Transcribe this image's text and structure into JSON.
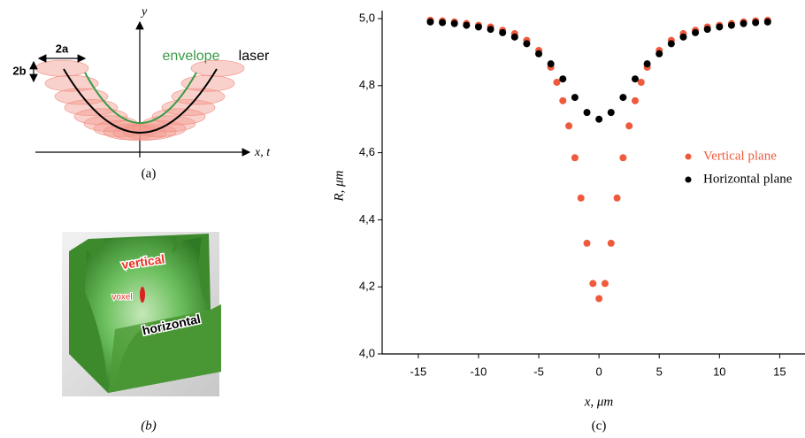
{
  "panel_a": {
    "y_axis": "y",
    "x_axis": "x, t",
    "width": "2a",
    "height": "2b",
    "envelope": "envelope",
    "laser": "laser",
    "caption": "(a)"
  },
  "panel_b": {
    "vertical": "vertical",
    "voxel": "voxel",
    "horizontal": "horizontal",
    "caption": "(b)"
  },
  "chart_data": {
    "type": "scatter",
    "caption": "(c)",
    "x_label": "x, μm",
    "y_label": "R, μm",
    "xlim": [
      -18,
      17.1
    ],
    "ylim": [
      4.0,
      5.0
    ],
    "xticks": [
      -15,
      -10,
      -5,
      0,
      5,
      10,
      15
    ],
    "yticks": [
      {
        "value": 4.0,
        "label": "4,0"
      },
      {
        "value": 4.2,
        "label": "4,2"
      },
      {
        "value": 4.4,
        "label": "4,4"
      },
      {
        "value": 4.6,
        "label": "4,6"
      },
      {
        "value": 4.8,
        "label": "4,8"
      },
      {
        "value": 5.0,
        "label": "5,0"
      }
    ],
    "legend": "right",
    "series": [
      {
        "name": "Vertical plane",
        "color": "#ef5a3c",
        "x": [
          -14,
          -13,
          -12,
          -11,
          -10,
          -9,
          -8,
          -7,
          -6,
          -5,
          -4,
          -3.5,
          -3,
          -2.5,
          -2,
          -1.5,
          -1,
          -0.5,
          0,
          0.5,
          1,
          1.5,
          2,
          2.5,
          3,
          3.5,
          4,
          5,
          6,
          7,
          8,
          9,
          10,
          11,
          12,
          13,
          14
        ],
        "values": [
          4.995,
          4.993,
          4.99,
          4.985,
          4.98,
          4.975,
          4.965,
          4.955,
          4.935,
          4.905,
          4.855,
          4.81,
          4.755,
          4.68,
          4.585,
          4.465,
          4.33,
          4.21,
          4.165,
          4.21,
          4.33,
          4.465,
          4.585,
          4.68,
          4.755,
          4.81,
          4.855,
          4.905,
          4.935,
          4.955,
          4.965,
          4.975,
          4.98,
          4.985,
          4.99,
          4.993,
          4.995
        ]
      },
      {
        "name": "Horizontal plane",
        "color": "#000000",
        "x": [
          -14,
          -13,
          -12,
          -11,
          -10,
          -9,
          -8,
          -7,
          -6,
          -5,
          -4,
          -3,
          -2,
          -1,
          0,
          1,
          2,
          3,
          4,
          5,
          6,
          7,
          8,
          9,
          10,
          11,
          12,
          13,
          14
        ],
        "values": [
          4.99,
          4.988,
          4.985,
          4.98,
          4.975,
          4.968,
          4.958,
          4.945,
          4.925,
          4.895,
          4.865,
          4.82,
          4.765,
          4.72,
          4.7,
          4.72,
          4.765,
          4.82,
          4.865,
          4.895,
          4.925,
          4.945,
          4.958,
          4.968,
          4.975,
          4.98,
          4.985,
          4.988,
          4.99
        ]
      }
    ]
  }
}
